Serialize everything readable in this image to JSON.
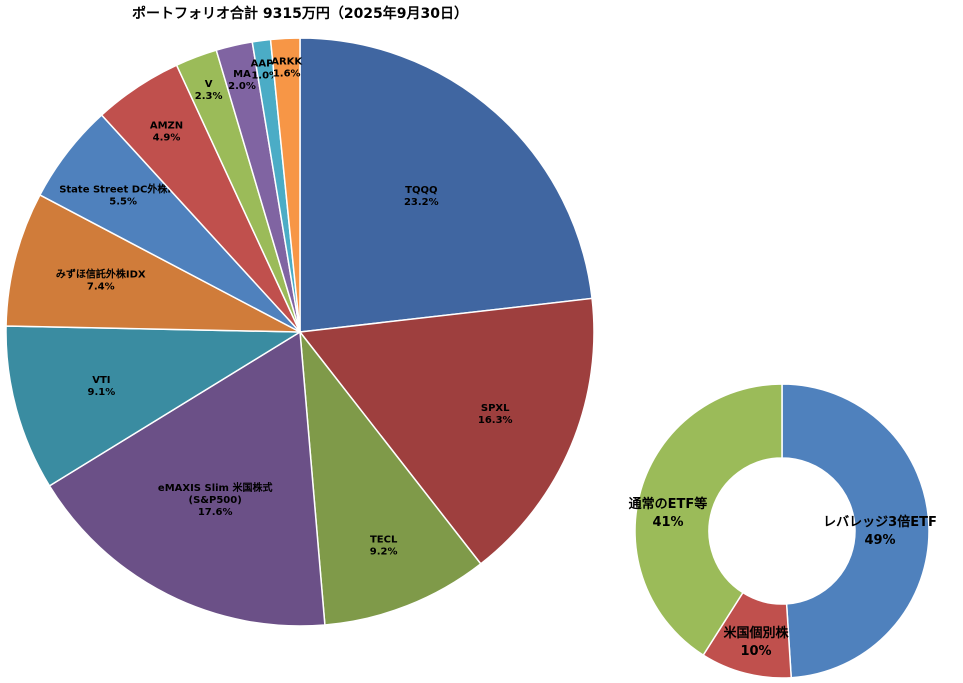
{
  "chart_data": [
    {
      "type": "pie",
      "title": "ポートフォリオ合計  9315万円（2025年9月30日）",
      "slices": [
        {
          "name": "TQQQ",
          "value": 23.2,
          "label": "23.2%",
          "color": "#4066a1"
        },
        {
          "name": "SPXL",
          "value": 16.3,
          "label": "16.3%",
          "color": "#9e3f3e"
        },
        {
          "name": "TECL",
          "value": 9.2,
          "label": "9.2%",
          "color": "#7f9a49"
        },
        {
          "name": "eMAXIS Slim 米国株式|(S&P500)",
          "value": 17.6,
          "label": "17.6%",
          "color": "#6b5087"
        },
        {
          "name": "VTI",
          "value": 9.1,
          "label": "9.1%",
          "color": "#3a8ca1"
        },
        {
          "name": "みずほ信託外株IDX",
          "value": 7.4,
          "label": "7.4%",
          "color": "#d07c3a"
        },
        {
          "name": "State Street DC外株IDX",
          "value": 5.5,
          "label": "5.5%",
          "color": "#4f81bd"
        },
        {
          "name": "AMZN",
          "value": 4.9,
          "label": "4.9%",
          "color": "#c0504d"
        },
        {
          "name": "V",
          "value": 2.3,
          "label": "2.3%",
          "color": "#9bbb59"
        },
        {
          "name": "MA",
          "value": 2.0,
          "label": "2.0%",
          "color": "#8064a2"
        },
        {
          "name": "AAPL",
          "value": 1.0,
          "label": "1.0%",
          "color": "#4bacc6"
        },
        {
          "name": "ARKK",
          "value": 1.6,
          "label": "1.6%",
          "color": "#f79646"
        }
      ]
    },
    {
      "type": "pie",
      "subtype": "doughnut",
      "title": "",
      "slices": [
        {
          "name": "レバレッジ3倍ETF",
          "value": 49,
          "label": "49%",
          "color": "#4f81bd"
        },
        {
          "name": "米国個別株",
          "value": 10,
          "label": "10%",
          "color": "#c0504d"
        },
        {
          "name": "通常のETF等",
          "value": 41,
          "label": "41%",
          "color": "#9bbb59"
        }
      ]
    }
  ]
}
